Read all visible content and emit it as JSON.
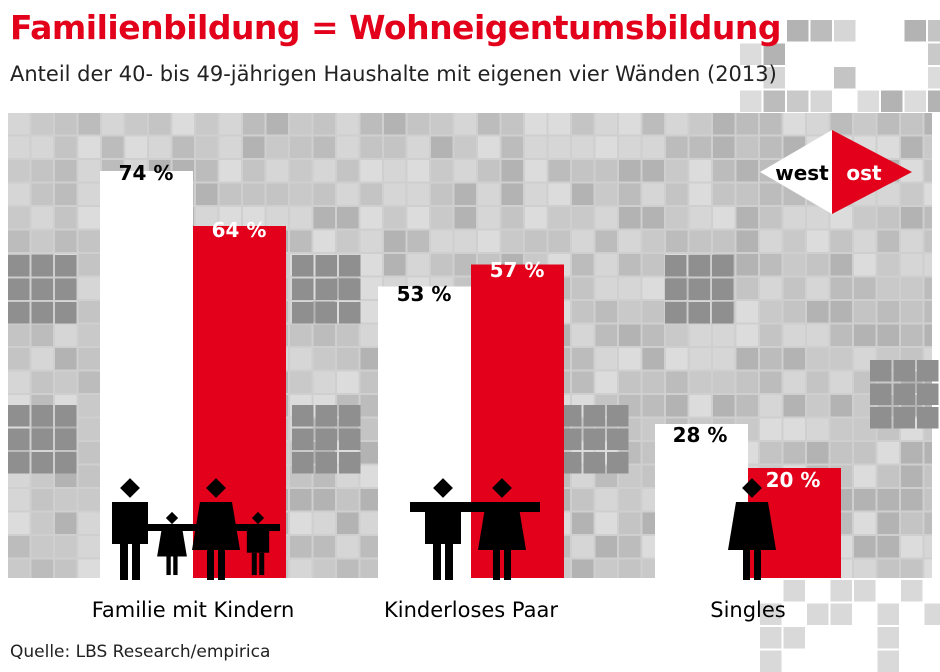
{
  "title": "Familienbildung = Wohneigentumsbildung",
  "subtitle": "Anteil der 40- bis 49-jährigen Haushalte mit eigenen vier Wänden (2013)",
  "source": "Quelle: LBS Research/empirica",
  "colors": {
    "west": "#ffffff",
    "ost": "#e2001a",
    "title": "#e2001a",
    "background": "#cfcfcf"
  },
  "chart_data": {
    "type": "bar",
    "categories": [
      "Familie mit Kindern",
      "Kinderloses Paar",
      "Singles"
    ],
    "series": [
      {
        "name": "west",
        "values": [
          74,
          53,
          28
        ],
        "labels": [
          "74 %",
          "53 %",
          "28 %"
        ]
      },
      {
        "name": "ost",
        "values": [
          64,
          57,
          20
        ],
        "labels": [
          "64 %",
          "57 %",
          "20 %"
        ]
      }
    ],
    "unit": "%",
    "ylim": [
      0,
      85
    ],
    "legend": {
      "position": "top-right",
      "entries": [
        "west",
        "ost"
      ]
    },
    "icons": [
      "family-icon",
      "couple-icon",
      "single-woman-icon"
    ]
  }
}
